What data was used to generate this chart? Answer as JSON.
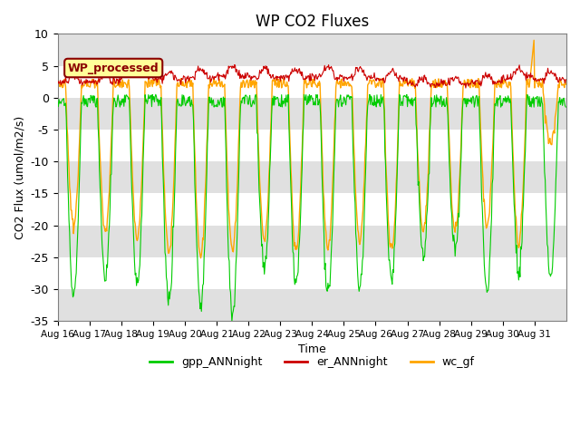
{
  "title": "WP CO2 Fluxes",
  "xlabel": "Time",
  "ylabel": "CO2 Flux (umol/m2/s)",
  "ylim": [
    -35,
    10
  ],
  "x_tick_labels": [
    "Aug 16",
    "Aug 17",
    "Aug 18",
    "Aug 19",
    "Aug 20",
    "Aug 21",
    "Aug 22",
    "Aug 23",
    "Aug 24",
    "Aug 25",
    "Aug 26",
    "Aug 27",
    "Aug 28",
    "Aug 29",
    "Aug 30",
    "Aug 31"
  ],
  "annotation_text": "WP_processed",
  "annotation_color": "#8B0000",
  "annotation_bg": "#FFFF99",
  "colors": {
    "gpp": "#00CC00",
    "er": "#CC0000",
    "wc": "#FFA500"
  },
  "legend_labels": [
    "gpp_ANNnight",
    "er_ANNnight",
    "wc_gf"
  ],
  "bg_band_color": "#E0E0E0",
  "n_points_per_day": 48,
  "n_days": 16,
  "day_amps_gpp": [
    -31,
    -28,
    -29,
    -32,
    -33,
    -34,
    -27,
    -29,
    -31,
    -30,
    -29,
    -25,
    -24,
    -30,
    -27,
    -28
  ],
  "day_amps_wc": [
    -22,
    -23,
    -24,
    -26,
    -27,
    -26,
    -24,
    -26,
    -26,
    -24,
    -26,
    -23,
    -23,
    -22,
    -25,
    -9
  ],
  "er_peak": [
    3.5,
    3.5,
    5.0,
    4.0,
    4.5,
    5.0,
    4.5,
    4.5,
    4.8,
    4.5,
    4.2,
    3.0,
    3.0,
    3.5,
    4.5,
    4.0
  ]
}
